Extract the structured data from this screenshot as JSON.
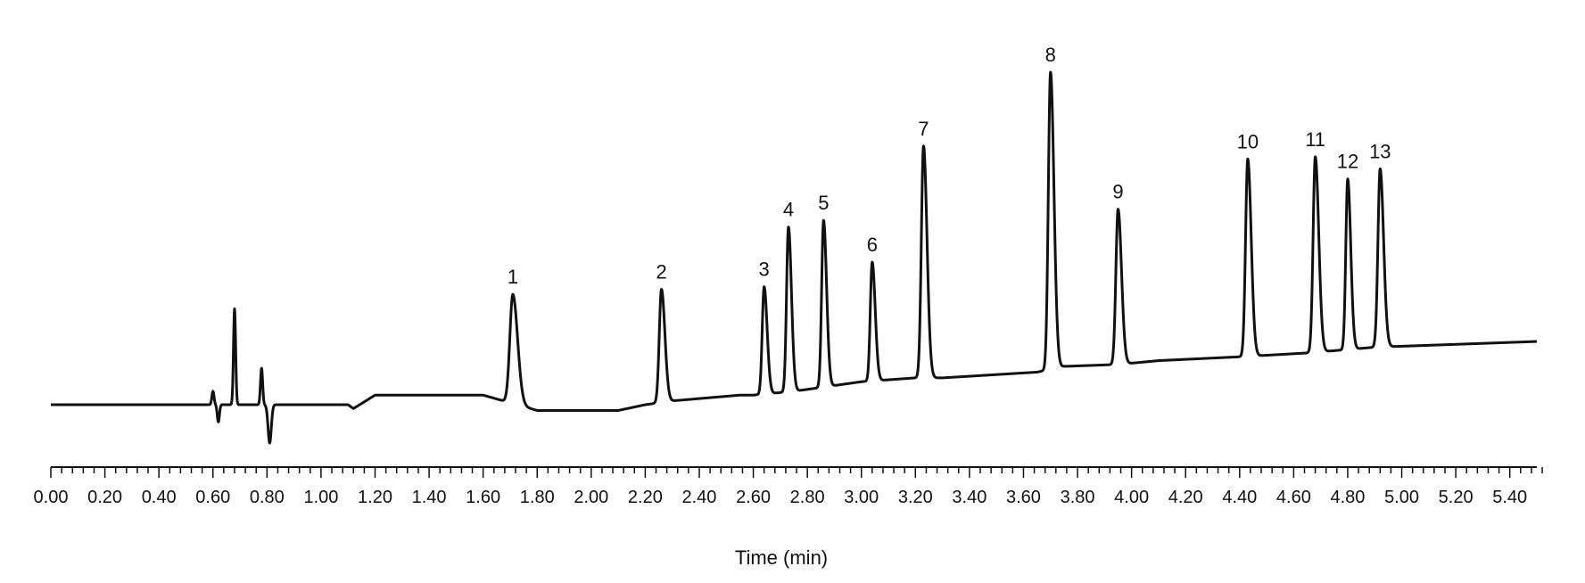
{
  "chart_data": {
    "type": "line",
    "title": "",
    "xlabel": "Time (min)",
    "ylabel": "",
    "xlim": [
      0.0,
      5.5
    ],
    "x_ticks": [
      "0.00",
      "0.20",
      "0.40",
      "0.60",
      "0.80",
      "1.00",
      "1.20",
      "1.40",
      "1.60",
      "1.80",
      "2.00",
      "2.20",
      "2.40",
      "2.60",
      "2.80",
      "3.00",
      "3.20",
      "3.40",
      "3.60",
      "3.80",
      "4.00",
      "4.20",
      "4.40",
      "4.60",
      "4.80",
      "5.00",
      "5.20",
      "5.40"
    ],
    "minor_tick_step": 0.04,
    "grid": false,
    "legend": "none",
    "line_color": "#111111",
    "baseline_points": [
      [
        0.0,
        0
      ],
      [
        0.55,
        0
      ],
      [
        1.1,
        0
      ],
      [
        1.12,
        -0.02
      ],
      [
        1.2,
        0.05
      ],
      [
        1.6,
        0.05
      ],
      [
        1.8,
        -0.03
      ],
      [
        2.1,
        -0.03
      ],
      [
        2.2,
        0.0
      ],
      [
        2.3,
        0.02
      ],
      [
        2.55,
        0.05
      ],
      [
        2.6,
        0.05
      ],
      [
        2.75,
        0.07
      ],
      [
        2.85,
        0.09
      ],
      [
        3.0,
        0.12
      ],
      [
        3.2,
        0.14
      ],
      [
        3.3,
        0.14
      ],
      [
        3.65,
        0.17
      ],
      [
        3.75,
        0.2
      ],
      [
        3.95,
        0.21
      ],
      [
        4.1,
        0.23
      ],
      [
        4.4,
        0.25
      ],
      [
        4.65,
        0.27
      ],
      [
        4.9,
        0.3
      ],
      [
        5.1,
        0.31
      ],
      [
        5.3,
        0.32
      ],
      [
        5.5,
        0.33
      ]
    ],
    "disturbances": [
      {
        "t": 0.6,
        "a": 0.07,
        "w": 0.004
      },
      {
        "t": 0.62,
        "a": -0.09,
        "w": 0.004
      },
      {
        "t": 0.68,
        "a": 0.5,
        "w": 0.004
      },
      {
        "t": 0.78,
        "a": 0.19,
        "w": 0.004
      },
      {
        "t": 0.81,
        "a": -0.2,
        "w": 0.006
      }
    ],
    "peaks": [
      {
        "label": "1",
        "rt": 1.71,
        "height": 0.57,
        "width": 0.011
      },
      {
        "label": "2",
        "rt": 2.26,
        "height": 0.59,
        "width": 0.008
      },
      {
        "label": "3",
        "rt": 2.64,
        "height": 0.56,
        "width": 0.007
      },
      {
        "label": "4",
        "rt": 2.73,
        "height": 0.86,
        "width": 0.007
      },
      {
        "label": "5",
        "rt": 2.86,
        "height": 0.87,
        "width": 0.007
      },
      {
        "label": "6",
        "rt": 3.04,
        "height": 0.62,
        "width": 0.007
      },
      {
        "label": "7",
        "rt": 3.23,
        "height": 1.21,
        "width": 0.008
      },
      {
        "label": "8",
        "rt": 3.7,
        "height": 1.55,
        "width": 0.008
      },
      {
        "label": "9",
        "rt": 3.95,
        "height": 0.81,
        "width": 0.008
      },
      {
        "label": "10",
        "rt": 4.43,
        "height": 1.03,
        "width": 0.008
      },
      {
        "label": "11",
        "rt": 4.68,
        "height": 1.02,
        "width": 0.008
      },
      {
        "label": "12",
        "rt": 4.8,
        "height": 0.89,
        "width": 0.007
      },
      {
        "label": "13",
        "rt": 4.92,
        "height": 0.93,
        "width": 0.008
      }
    ]
  }
}
